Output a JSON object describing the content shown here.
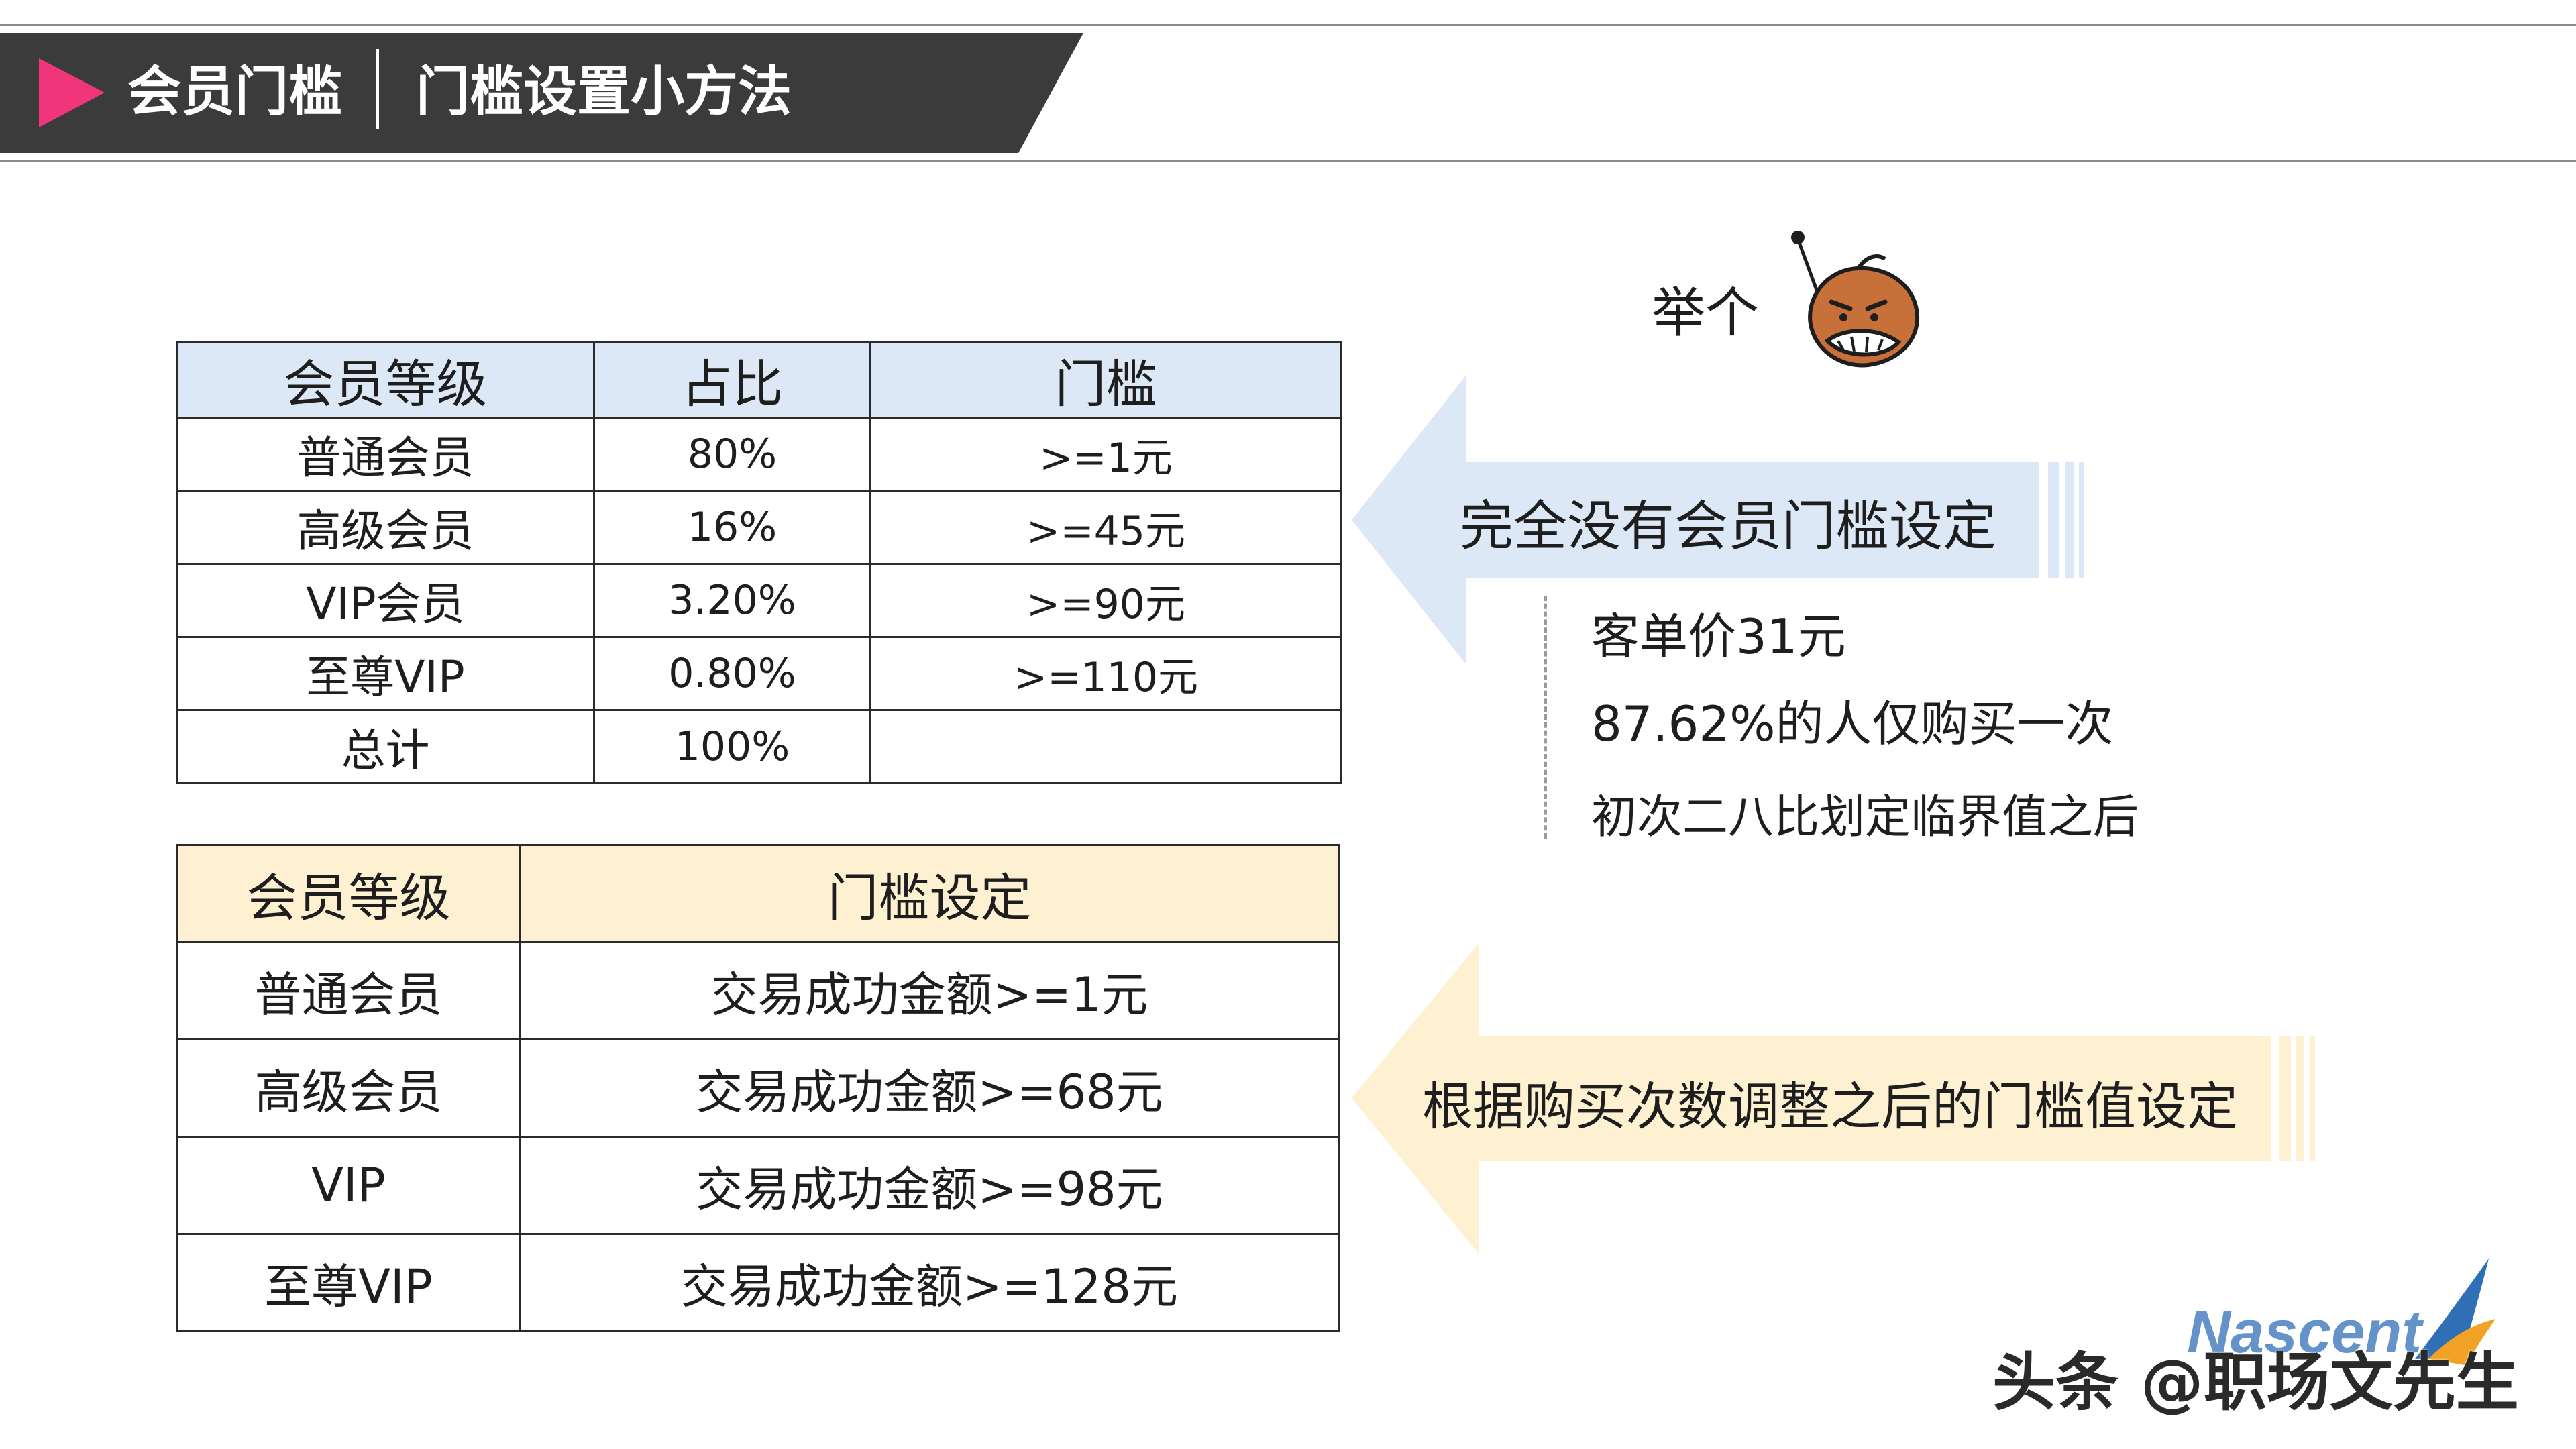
{
  "header": {
    "section": "会员门槛",
    "title": "门槛设置小方法"
  },
  "colors": {
    "banner": "#3b3b3b",
    "accent_pink": "#f0357a",
    "table1_header": "#dce8f5",
    "table2_header": "#fdf1d2",
    "arrow_blue": "#dce8f5",
    "arrow_yellow": "#fdf1d2"
  },
  "table1": {
    "headers": [
      "会员等级",
      "占比",
      "门槛"
    ],
    "rows": [
      [
        "普通会员",
        "80%",
        ">=1元"
      ],
      [
        "高级会员",
        "16%",
        ">=45元"
      ],
      [
        "VIP会员",
        "3.20%",
        ">=90元"
      ],
      [
        "至尊VIP",
        "0.80%",
        ">=110元"
      ],
      [
        "总计",
        "100%",
        ""
      ]
    ]
  },
  "table2": {
    "headers": [
      "会员等级",
      "门槛设定"
    ],
    "rows": [
      [
        "普通会员",
        "交易成功金额>=1元"
      ],
      [
        "高级会员",
        "交易成功金额>=68元"
      ],
      [
        "VIP",
        "交易成功金额>=98元"
      ],
      [
        "至尊VIP",
        "交易成功金额>=128元"
      ]
    ]
  },
  "example": {
    "label": "举个",
    "mascot_icon": "chestnut-mascot-icon"
  },
  "arrow1": {
    "label": "完全没有会员门槛设定"
  },
  "notes": [
    "客单价31元",
    "87.62%的人仅购买一次",
    "初次二八比划定临界值之后"
  ],
  "arrow2": {
    "label": "根据购买次数调整之后的门槛值设定"
  },
  "watermark": {
    "text": "头条 @职场文先生",
    "logo_text": "Nascent"
  }
}
